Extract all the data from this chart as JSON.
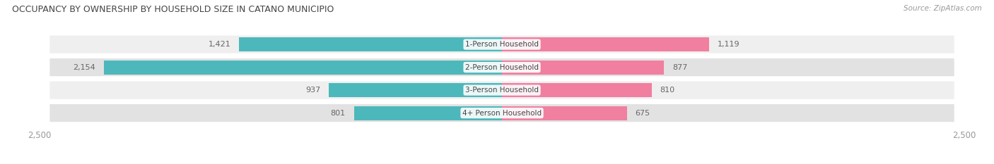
{
  "title": "OCCUPANCY BY OWNERSHIP BY HOUSEHOLD SIZE IN CATANO MUNICIPIO",
  "source": "Source: ZipAtlas.com",
  "categories": [
    "1-Person Household",
    "2-Person Household",
    "3-Person Household",
    "4+ Person Household"
  ],
  "owner_values": [
    1421,
    2154,
    937,
    801
  ],
  "renter_values": [
    1119,
    877,
    810,
    675
  ],
  "owner_color": "#4db8bb",
  "renter_color": "#f07fa0",
  "row_bg_light": "#efefef",
  "row_bg_dark": "#e2e2e2",
  "x_max": 2500,
  "label_color": "#666666",
  "title_color": "#444444",
  "cat_label_color": "#444444",
  "axis_label_color": "#999999",
  "figsize": [
    14.06,
    2.33
  ],
  "dpi": 100
}
